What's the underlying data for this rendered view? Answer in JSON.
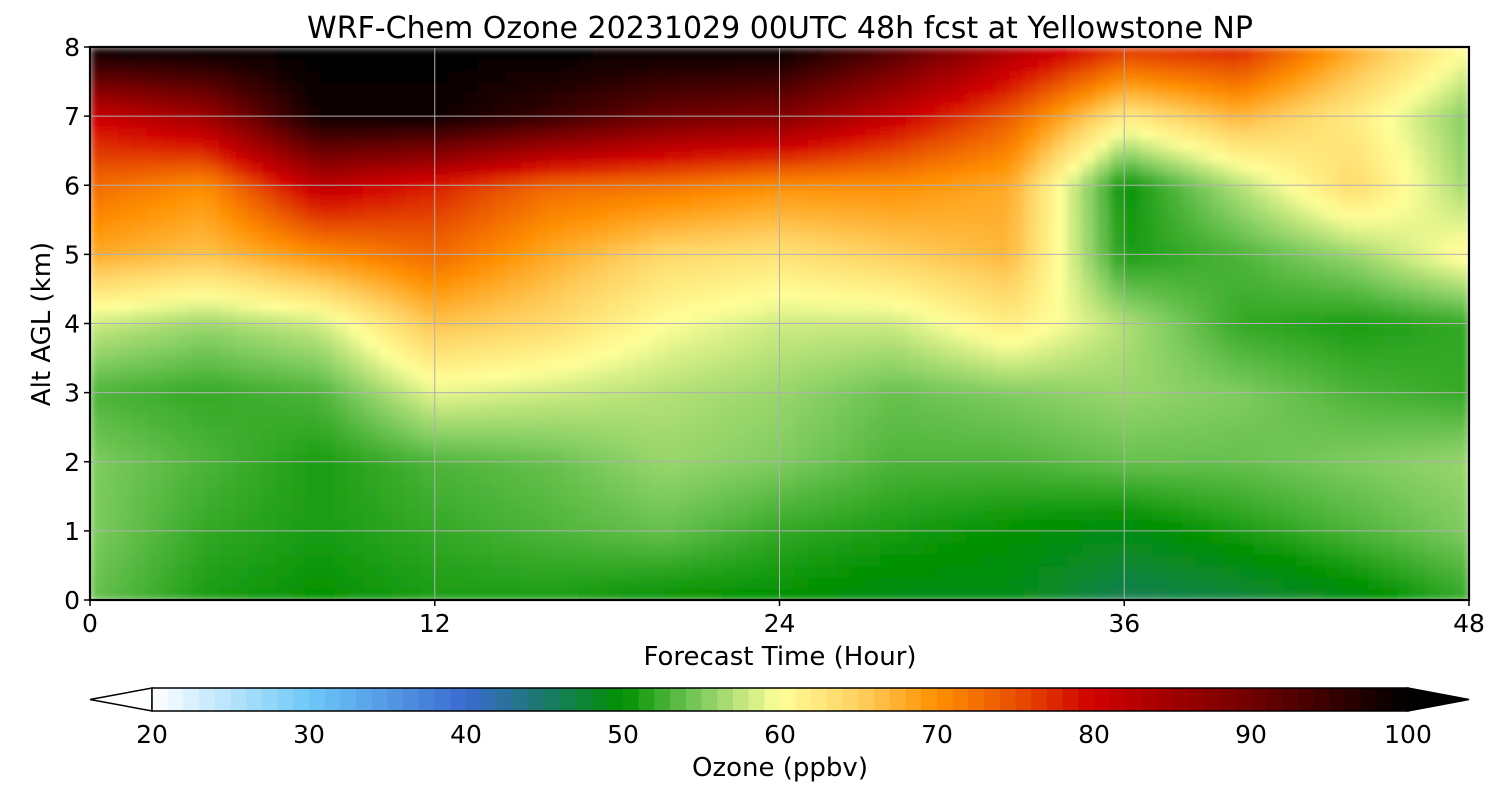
{
  "chart_data": {
    "type": "heatmap",
    "title": "WRF-Chem Ozone  20231029 00UTC 48h fcst at Yellowstone NP",
    "xlabel": "Forecast Time (Hour)",
    "ylabel": "Alt AGL (km)",
    "xlim": [
      0,
      48
    ],
    "ylim": [
      0,
      8
    ],
    "x_ticks": [
      "0",
      "12",
      "24",
      "36",
      "48"
    ],
    "y_ticks": [
      "0",
      "1",
      "2",
      "3",
      "4",
      "5",
      "6",
      "7",
      "8"
    ],
    "grid": true,
    "x_hours": [
      0,
      4,
      8,
      12,
      16,
      20,
      24,
      28,
      32,
      36,
      40,
      44,
      48
    ],
    "altitudes_km": [
      0,
      1,
      2,
      3,
      4,
      5,
      6,
      7,
      8
    ],
    "ozone_ppbv": [
      [
        54,
        51,
        50,
        51,
        51,
        50,
        50,
        49,
        49,
        46,
        47,
        49,
        52
      ],
      [
        55,
        52,
        51,
        52,
        53,
        54,
        52,
        51,
        50,
        49,
        51,
        53,
        55
      ],
      [
        55,
        53,
        51,
        53,
        54,
        56,
        55,
        53,
        53,
        54,
        54,
        55,
        56
      ],
      [
        53,
        52,
        53,
        59,
        58,
        57,
        56,
        54,
        55,
        56,
        55,
        53,
        52
      ],
      [
        58,
        56,
        58,
        66,
        64,
        60,
        58,
        58,
        62,
        57,
        52,
        51,
        52
      ],
      [
        68,
        66,
        70,
        73,
        68,
        64,
        63,
        65,
        67,
        51,
        53,
        56,
        61
      ],
      [
        73,
        70,
        82,
        78,
        73,
        72,
        70,
        70,
        68,
        50,
        57,
        64,
        56
      ],
      [
        80,
        85,
        99,
        99,
        95,
        90,
        88,
        81,
        74,
        62,
        67,
        62,
        55
      ],
      [
        100,
        100,
        100,
        100,
        100,
        100,
        100,
        93,
        84,
        77,
        78,
        68,
        60
      ]
    ],
    "colorbar": {
      "label": "Ozone  (ppbv)",
      "min": 20,
      "max": 100,
      "extend": "both",
      "tick_labels": [
        "20",
        "30",
        "40",
        "50",
        "60",
        "70",
        "80",
        "90",
        "100"
      ]
    },
    "colormap": [
      [
        20,
        "#ffffff"
      ],
      [
        30,
        "#6ec8f8"
      ],
      [
        40,
        "#3a6ad0"
      ],
      [
        45,
        "#1a7a6a"
      ],
      [
        50,
        "#009000"
      ],
      [
        55,
        "#80cc60"
      ],
      [
        60,
        "#ffff99"
      ],
      [
        65,
        "#ffd060"
      ],
      [
        70,
        "#ff9000"
      ],
      [
        75,
        "#e85000"
      ],
      [
        80,
        "#d00000"
      ],
      [
        90,
        "#700000"
      ],
      [
        100,
        "#000000"
      ]
    ]
  }
}
